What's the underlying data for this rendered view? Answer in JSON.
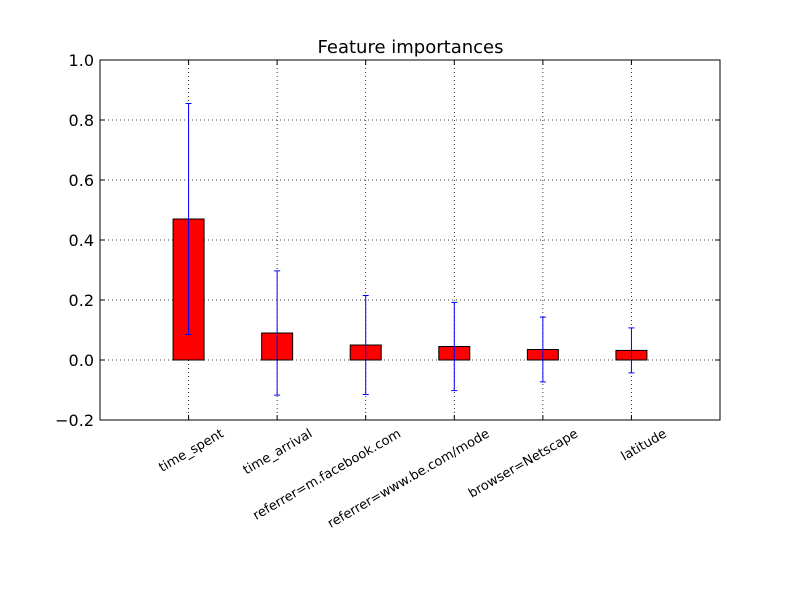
{
  "chart_data": {
    "type": "bar",
    "title": "Feature importances",
    "xlabel": "",
    "ylabel": "",
    "categories": [
      "time_spent",
      "time_arrival",
      "referrer=m.facebook.com",
      "referrer=www.be.com/mode",
      "browser=Netscape",
      "latitude"
    ],
    "values": [
      0.47,
      0.09,
      0.05,
      0.045,
      0.035,
      0.032
    ],
    "error": [
      0.385,
      0.207,
      0.165,
      0.147,
      0.108,
      0.075
    ],
    "ylim": [
      -0.2,
      1.0
    ],
    "yticks": [
      "−0.2",
      "0.0",
      "0.2",
      "0.4",
      "0.6",
      "0.8",
      "1.0"
    ],
    "ytick_values": [
      -0.2,
      0.0,
      0.2,
      0.4,
      0.6,
      0.8,
      1.0
    ],
    "grid": true,
    "colors": {
      "bar": "#ff0000",
      "error": "#0000ff",
      "grid": "#000000"
    }
  }
}
